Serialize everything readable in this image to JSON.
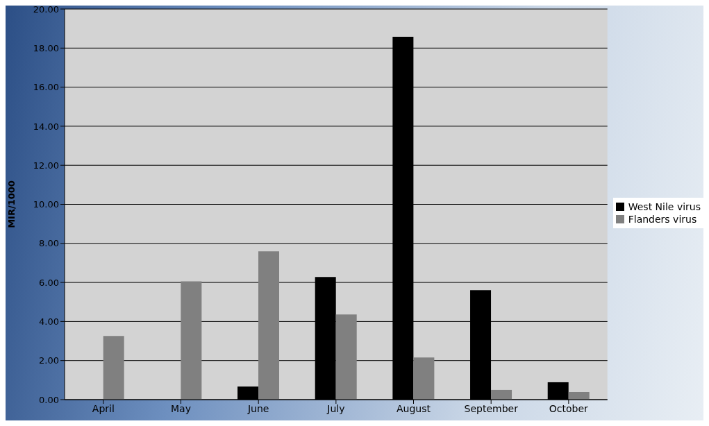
{
  "chart_data": {
    "type": "bar",
    "ylabel": "MIR/1000",
    "categories": [
      "April",
      "May",
      "June",
      "July",
      "August",
      "September",
      "October"
    ],
    "series": [
      {
        "name": "West Nile virus",
        "color": "#000000",
        "values": [
          null,
          null,
          0.67,
          6.28,
          18.58,
          5.6,
          0.89
        ]
      },
      {
        "name": "Flanders virus",
        "color": "#808080",
        "values": [
          3.26,
          6.06,
          7.59,
          4.36,
          2.16,
          0.5,
          0.39
        ]
      }
    ],
    "ylim": [
      0,
      20
    ],
    "yticks": [
      {
        "value": 0,
        "label": "0.00"
      },
      {
        "value": 2,
        "label": "2.00"
      },
      {
        "value": 4,
        "label": "4.00"
      },
      {
        "value": 6,
        "label": "6.00"
      },
      {
        "value": 8,
        "label": "8.00"
      },
      {
        "value": 10,
        "label": "10.00"
      },
      {
        "value": 12,
        "label": "12.00"
      },
      {
        "value": 14,
        "label": "14.00"
      },
      {
        "value": 16,
        "label": "16.00"
      },
      {
        "value": 18,
        "label": "18.00"
      },
      {
        "value": 20,
        "label": "20.00"
      }
    ],
    "grid": "y",
    "legend": "right"
  }
}
